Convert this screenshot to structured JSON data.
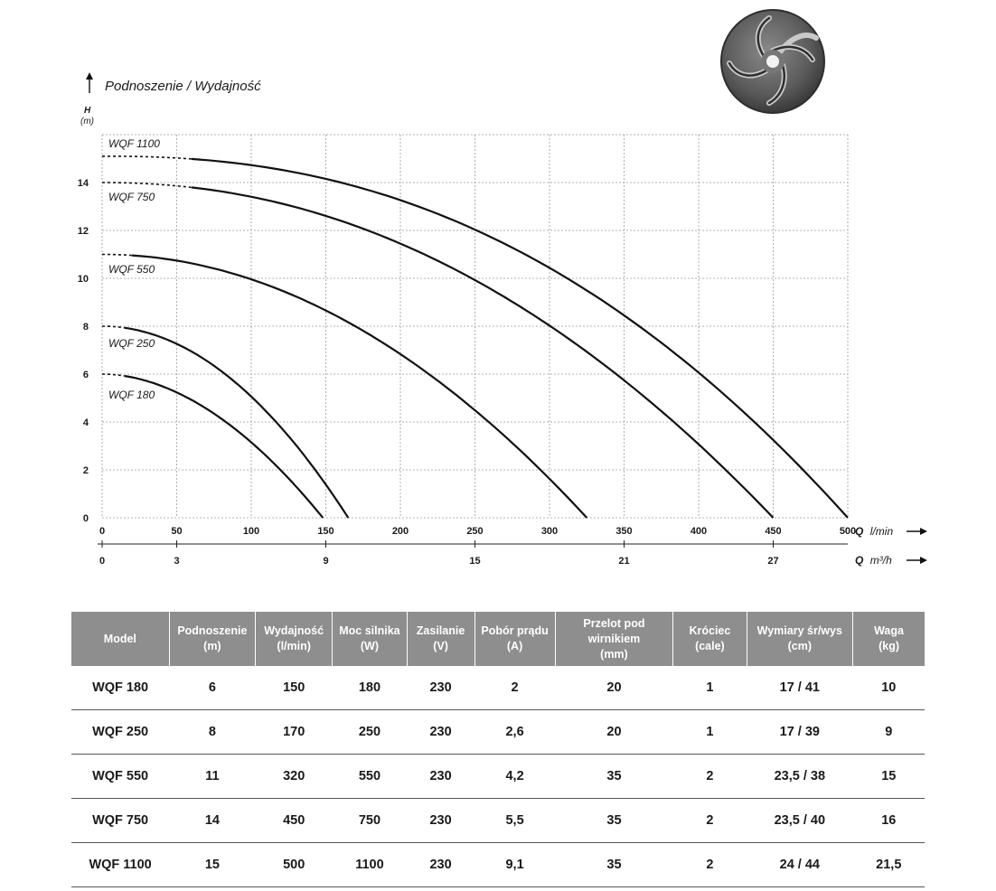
{
  "chart_data": {
    "type": "line",
    "title": "Podnoszenie / Wydajność",
    "y_axis_symbol": "H",
    "y_axis_unit": "(m)",
    "ylim": [
      0,
      16
    ],
    "y_ticks": [
      "0",
      "2",
      "4",
      "6",
      "8",
      "10",
      "12",
      "14"
    ],
    "xlim": [
      0,
      500
    ],
    "x_ticks": [
      "0",
      "50",
      "100",
      "150",
      "200",
      "250",
      "300",
      "350",
      "400",
      "450",
      "500"
    ],
    "x_axis_symbol": "Q",
    "x_axis_unit": "l/min",
    "x2_ticks": [
      "0",
      "3",
      "9",
      "15",
      "21",
      "27"
    ],
    "x2_axis_symbol": "Q",
    "x2_axis_unit": "m³/h",
    "grid": true,
    "series": [
      {
        "name": "WQF 1100",
        "h0": 15.1,
        "qmax": 500,
        "points": [
          [
            0,
            15.1
          ],
          [
            100,
            14.4
          ],
          [
            200,
            12.7
          ],
          [
            300,
            10.0
          ],
          [
            400,
            6.2
          ],
          [
            450,
            3.6
          ],
          [
            500,
            0
          ]
        ]
      },
      {
        "name": "WQF 750",
        "h0": 14.0,
        "qmax": 450,
        "points": [
          [
            0,
            14.0
          ],
          [
            100,
            13.3
          ],
          [
            200,
            11.3
          ],
          [
            300,
            8.2
          ],
          [
            400,
            3.8
          ],
          [
            450,
            0
          ]
        ]
      },
      {
        "name": "WQF 550",
        "h0": 11.0,
        "qmax": 325,
        "points": [
          [
            0,
            11.0
          ],
          [
            100,
            10.1
          ],
          [
            200,
            7.7
          ],
          [
            300,
            2.2
          ],
          [
            325,
            0
          ]
        ]
      },
      {
        "name": "WQF 250",
        "h0": 8.0,
        "qmax": 165,
        "points": [
          [
            0,
            8.0
          ],
          [
            50,
            7.5
          ],
          [
            100,
            5.8
          ],
          [
            150,
            1.8
          ],
          [
            165,
            0
          ]
        ]
      },
      {
        "name": "WQF 180",
        "h0": 6.0,
        "qmax": 148,
        "points": [
          [
            0,
            6.0
          ],
          [
            50,
            5.4
          ],
          [
            100,
            3.8
          ],
          [
            148,
            0
          ]
        ]
      }
    ]
  },
  "table": {
    "headers": [
      [
        "Model"
      ],
      [
        "Podnoszenie",
        "(m)"
      ],
      [
        "Wydajność",
        "(l/min)"
      ],
      [
        "Moc silnika",
        "(W)"
      ],
      [
        "Zasilanie",
        "(V)"
      ],
      [
        "Pobór prądu",
        "(A)"
      ],
      [
        "Przelot pod wirnikiem",
        "(mm)"
      ],
      [
        "Króciec",
        "(cale)"
      ],
      [
        "Wymiary śr/wys",
        "(cm)"
      ],
      [
        "Waga",
        "(kg)"
      ]
    ],
    "rows": [
      [
        "WQF 180",
        "6",
        "150",
        "180",
        "230",
        "2",
        "20",
        "1",
        "17 / 41",
        "10"
      ],
      [
        "WQF 250",
        "8",
        "170",
        "250",
        "230",
        "2,6",
        "20",
        "1",
        "17 / 39",
        "9"
      ],
      [
        "WQF 550",
        "11",
        "320",
        "550",
        "230",
        "4,2",
        "35",
        "2",
        "23,5 / 38",
        "15"
      ],
      [
        "WQF 750",
        "14",
        "450",
        "750",
        "230",
        "5,5",
        "35",
        "2",
        "23,5 / 40",
        "16"
      ],
      [
        "WQF 1100",
        "15",
        "500",
        "1100",
        "230",
        "9,1",
        "35",
        "2",
        "24 / 44",
        "21,5"
      ]
    ]
  },
  "impeller_image": {
    "icon": "impeller-icon",
    "color": "#555555"
  }
}
